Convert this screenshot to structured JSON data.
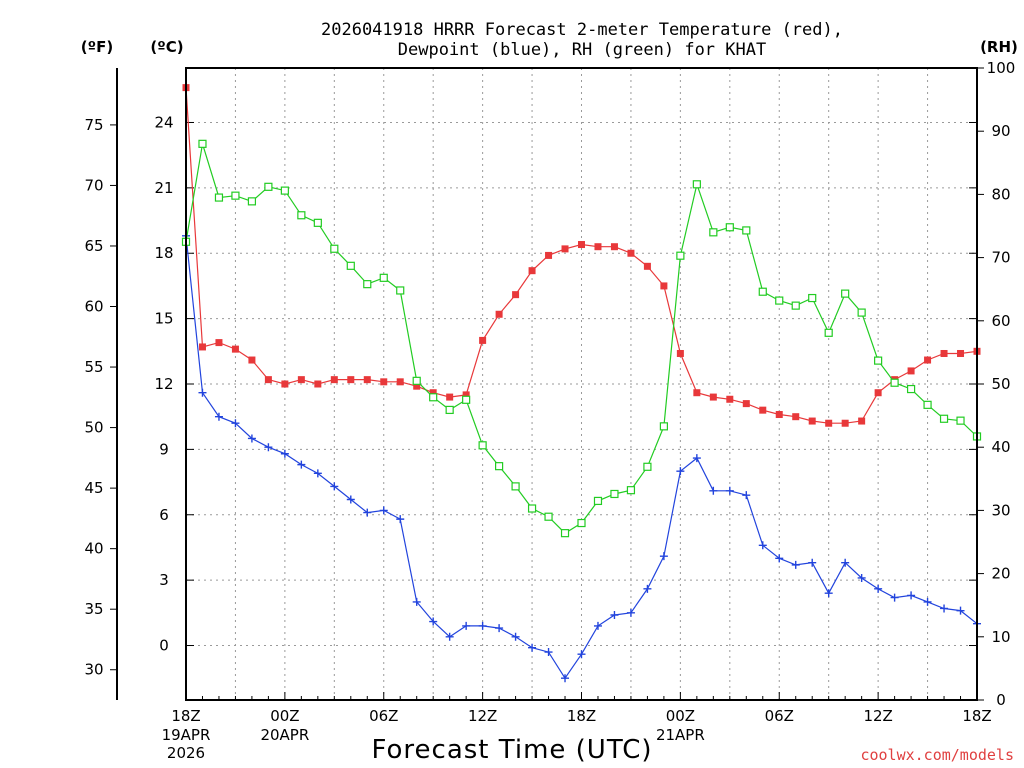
{
  "chart_data": {
    "type": "line",
    "title_lines": [
      "2026041918 HRRR Forecast 2-meter Temperature (red),",
      "Dewpoint (blue), RH (green) for KHAT"
    ],
    "xlabel": "Forecast Time (UTC)",
    "credit": "coolwx.com/models",
    "units": {
      "fahrenheit": "(ºF)",
      "celsius": "(ºC)",
      "rh": "(RH)"
    },
    "x_hours": {
      "start": 0,
      "end": 48,
      "step": 1
    },
    "x_ticks": [
      {
        "hour": 0,
        "label": "18Z",
        "date": "19APR",
        "year": "2026"
      },
      {
        "hour": 6,
        "label": "00Z",
        "date": "20APR",
        "year": ""
      },
      {
        "hour": 12,
        "label": "06Z",
        "date": "",
        "year": ""
      },
      {
        "hour": 18,
        "label": "12Z",
        "date": "",
        "year": ""
      },
      {
        "hour": 24,
        "label": "18Z",
        "date": "",
        "year": ""
      },
      {
        "hour": 30,
        "label": "00Z",
        "date": "21APR",
        "year": ""
      },
      {
        "hour": 36,
        "label": "06Z",
        "date": "",
        "year": ""
      },
      {
        "hour": 42,
        "label": "12Z",
        "date": "",
        "year": ""
      },
      {
        "hour": 48,
        "label": "18Z",
        "date": "",
        "year": ""
      }
    ],
    "celsius_axis": {
      "min": -2.5,
      "max": 26.5,
      "ticks": [
        0,
        3,
        6,
        9,
        12,
        15,
        18,
        21,
        24
      ]
    },
    "fahrenheit_axis": {
      "ticks": [
        30,
        35,
        40,
        45,
        50,
        55,
        60,
        65,
        70,
        75
      ]
    },
    "rh_axis": {
      "min": 0,
      "max": 100,
      "ticks": [
        0,
        10,
        20,
        30,
        40,
        50,
        60,
        70,
        80,
        90,
        100
      ]
    },
    "series": [
      {
        "name": "Temperature",
        "unit": "C",
        "color": "#e8383a",
        "marker": "filled-square",
        "values": [
          25.6,
          13.7,
          13.9,
          13.6,
          13.1,
          12.2,
          12.0,
          12.2,
          12.0,
          12.2,
          12.2,
          12.2,
          12.1,
          12.1,
          11.9,
          11.6,
          11.4,
          11.5,
          14.0,
          15.2,
          16.1,
          17.2,
          17.9,
          18.2,
          18.4,
          18.3,
          18.3,
          18.0,
          17.4,
          16.5,
          13.4,
          11.6,
          11.4,
          11.3,
          11.1,
          10.8,
          10.6,
          10.5,
          10.3,
          10.2,
          10.2,
          10.3,
          11.6,
          12.2,
          12.6,
          13.1,
          13.4,
          13.4,
          13.5
        ]
      },
      {
        "name": "Dewpoint",
        "unit": "C",
        "color": "#2244dd",
        "marker": "plus",
        "values": [
          18.8,
          11.6,
          10.5,
          10.2,
          9.5,
          9.1,
          8.8,
          8.3,
          7.9,
          7.3,
          6.7,
          6.1,
          6.2,
          5.8,
          2.0,
          1.1,
          0.4,
          0.9,
          0.9,
          0.8,
          0.4,
          -0.1,
          -0.3,
          -1.5,
          -0.4,
          0.9,
          1.4,
          1.5,
          2.6,
          4.1,
          8.0,
          8.6,
          7.1,
          7.1,
          6.9,
          4.6,
          4.0,
          3.7,
          3.8,
          2.4,
          3.8,
          3.1,
          2.6,
          2.2,
          2.3,
          2.0,
          1.7,
          1.6,
          1.0
        ]
      },
      {
        "name": "RH",
        "unit": "%",
        "color": "#22cc22",
        "marker": "open-square",
        "values": [
          72.5,
          88.0,
          79.5,
          79.8,
          78.9,
          81.2,
          80.6,
          76.7,
          75.5,
          71.4,
          68.7,
          65.8,
          66.8,
          64.8,
          50.5,
          47.9,
          45.9,
          47.5,
          40.3,
          37.0,
          33.8,
          30.3,
          29.0,
          26.4,
          28.0,
          31.5,
          32.6,
          33.2,
          36.9,
          43.3,
          70.3,
          81.6,
          74.0,
          74.8,
          74.3,
          64.6,
          63.2,
          62.4,
          63.6,
          58.1,
          64.3,
          61.3,
          53.7,
          50.2,
          49.2,
          46.7,
          44.5,
          44.2,
          41.7
        ]
      }
    ]
  }
}
